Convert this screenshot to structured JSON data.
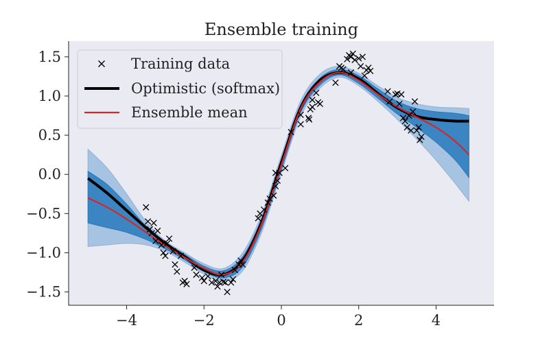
{
  "chart_data": {
    "type": "line",
    "title": "Ensemble training",
    "xlabel": "",
    "ylabel": "",
    "xlim": [
      -5.5,
      5.5
    ],
    "ylim": [
      -1.67,
      1.7
    ],
    "xticks": [
      -4,
      -2,
      0,
      2,
      4
    ],
    "yticks": [
      -1.5,
      -1.0,
      -0.5,
      0.0,
      0.5,
      1.0,
      1.5
    ],
    "xtick_labels": [
      "−4",
      "−2",
      "0",
      "2",
      "4"
    ],
    "ytick_labels": [
      "−1.5",
      "−1.0",
      "−0.5",
      "0.0",
      "0.5",
      "1.0",
      "1.5"
    ],
    "grid": false,
    "legend_position": "upper-left",
    "legend": [
      {
        "label": "Training data",
        "marker": "x",
        "color": "#000000"
      },
      {
        "label": "Optimistic (softmax)",
        "marker": "line",
        "color": "#000000"
      },
      {
        "label": "Ensemble mean",
        "marker": "line",
        "color": "#d62728"
      }
    ],
    "colors": {
      "background": "#eaeaf2",
      "band_outer": "#a7c3e2",
      "band_inner": "#3a85c2",
      "optimistic": "#000000",
      "mean": "#d62728",
      "points": "#000000"
    },
    "x": [
      -5.0,
      -4.5,
      -4.0,
      -3.5,
      -3.0,
      -2.5,
      -2.0,
      -1.5,
      -1.0,
      -0.5,
      0.0,
      0.5,
      1.0,
      1.5,
      2.0,
      2.5,
      3.0,
      3.5,
      4.0,
      4.5,
      4.85
    ],
    "series": [
      {
        "name": "Optimistic (softmax)",
        "values": [
          -0.05,
          -0.24,
          -0.46,
          -0.68,
          -0.88,
          -1.05,
          -1.22,
          -1.28,
          -1.1,
          -0.6,
          0.15,
          0.85,
          1.2,
          1.3,
          1.22,
          1.03,
          0.85,
          0.74,
          0.7,
          0.68,
          0.68
        ]
      },
      {
        "name": "Ensemble mean",
        "values": [
          -0.3,
          -0.42,
          -0.57,
          -0.74,
          -0.91,
          -1.06,
          -1.2,
          -1.28,
          -1.12,
          -0.62,
          0.12,
          0.84,
          1.18,
          1.3,
          1.2,
          1.02,
          0.86,
          0.73,
          0.6,
          0.42,
          0.25
        ]
      }
    ],
    "bands": {
      "outer_upper": [
        0.32,
        0.08,
        -0.25,
        -0.6,
        -0.85,
        -1.0,
        -1.14,
        -1.2,
        -1.0,
        -0.5,
        0.24,
        0.94,
        1.28,
        1.38,
        1.29,
        1.13,
        0.98,
        0.9,
        0.86,
        0.85,
        0.84
      ],
      "outer_lower": [
        -0.92,
        -0.9,
        -0.88,
        -0.9,
        -0.98,
        -1.12,
        -1.27,
        -1.36,
        -1.23,
        -0.73,
        0.02,
        0.74,
        1.1,
        1.24,
        1.13,
        0.93,
        0.7,
        0.45,
        0.18,
        -0.12,
        -0.34
      ],
      "inner_upper": [
        0.04,
        -0.13,
        -0.38,
        -0.66,
        -0.87,
        -1.02,
        -1.17,
        -1.23,
        -1.05,
        -0.55,
        0.19,
        0.89,
        1.23,
        1.34,
        1.26,
        1.09,
        0.93,
        0.84,
        0.8,
        0.78,
        0.75
      ],
      "inner_lower": [
        -0.62,
        -0.68,
        -0.74,
        -0.83,
        -0.95,
        -1.09,
        -1.24,
        -1.32,
        -1.18,
        -0.68,
        0.06,
        0.79,
        1.14,
        1.27,
        1.16,
        0.97,
        0.77,
        0.6,
        0.41,
        0.18,
        -0.04
      ]
    },
    "points": [
      [
        -3.5,
        -0.42
      ],
      [
        -3.45,
        -0.6
      ],
      [
        -3.4,
        -0.7
      ],
      [
        -3.35,
        -0.75
      ],
      [
        -3.3,
        -0.62
      ],
      [
        -3.25,
        -0.85
      ],
      [
        -3.2,
        -0.72
      ],
      [
        -3.1,
        -0.9
      ],
      [
        -3.05,
        -1.0
      ],
      [
        -3.0,
        -1.04
      ],
      [
        -2.95,
        -0.88
      ],
      [
        -2.9,
        -0.82
      ],
      [
        -2.8,
        -0.98
      ],
      [
        -2.75,
        -1.15
      ],
      [
        -2.7,
        -1.24
      ],
      [
        -2.6,
        -1.04
      ],
      [
        -2.55,
        -1.38
      ],
      [
        -2.5,
        -1.36
      ],
      [
        -2.45,
        -1.4
      ],
      [
        -2.25,
        -1.19
      ],
      [
        -2.2,
        -1.28
      ],
      [
        -2.05,
        -1.32
      ],
      [
        -2.0,
        -1.36
      ],
      [
        -1.9,
        -1.3
      ],
      [
        -1.8,
        -1.38
      ],
      [
        -1.7,
        -1.36
      ],
      [
        -1.65,
        -1.43
      ],
      [
        -1.6,
        -1.38
      ],
      [
        -1.55,
        -1.28
      ],
      [
        -1.5,
        -1.37
      ],
      [
        -1.45,
        -1.38
      ],
      [
        -1.4,
        -1.5
      ],
      [
        -1.3,
        -1.38
      ],
      [
        -1.25,
        -1.34
      ],
      [
        -1.2,
        -1.22
      ],
      [
        -1.1,
        -1.15
      ],
      [
        -1.05,
        -1.1
      ],
      [
        -1.0,
        -1.15
      ],
      [
        -0.6,
        -0.56
      ],
      [
        -0.55,
        -0.5
      ],
      [
        -0.45,
        -0.45
      ],
      [
        -0.35,
        -0.36
      ],
      [
        -0.3,
        -0.31
      ],
      [
        -0.2,
        -0.27
      ],
      [
        -0.15,
        -0.15
      ],
      [
        -0.1,
        -0.08
      ],
      [
        -0.15,
        0.02
      ],
      [
        -0.05,
        0.02
      ],
      [
        0.1,
        0.08
      ],
      [
        0.25,
        0.54
      ],
      [
        0.5,
        0.64
      ],
      [
        0.5,
        0.76
      ],
      [
        0.7,
        0.72
      ],
      [
        0.72,
        0.7
      ],
      [
        0.75,
        0.83
      ],
      [
        0.8,
        0.86
      ],
      [
        0.8,
        0.95
      ],
      [
        0.9,
        1.04
      ],
      [
        0.95,
        0.92
      ],
      [
        1.0,
        0.9
      ],
      [
        1.4,
        1.17
      ],
      [
        1.5,
        1.38
      ],
      [
        1.55,
        1.36
      ],
      [
        1.6,
        1.34
      ],
      [
        1.7,
        1.47
      ],
      [
        1.75,
        1.52
      ],
      [
        1.8,
        1.3
      ],
      [
        1.8,
        1.5
      ],
      [
        1.85,
        1.54
      ],
      [
        1.9,
        1.46
      ],
      [
        2.0,
        1.48
      ],
      [
        2.05,
        1.38
      ],
      [
        2.1,
        1.5
      ],
      [
        2.15,
        1.26
      ],
      [
        2.2,
        1.33
      ],
      [
        2.25,
        1.36
      ],
      [
        2.3,
        1.32
      ],
      [
        2.75,
        1.06
      ],
      [
        2.8,
        0.93
      ],
      [
        2.95,
        1.02
      ],
      [
        3.0,
        1.03
      ],
      [
        3.05,
        0.9
      ],
      [
        3.1,
        1.02
      ],
      [
        3.15,
        0.72
      ],
      [
        3.2,
        0.68
      ],
      [
        3.25,
        0.6
      ],
      [
        3.3,
        0.75
      ],
      [
        3.35,
        0.56
      ],
      [
        3.4,
        0.8
      ],
      [
        3.45,
        0.93
      ],
      [
        3.5,
        0.56
      ],
      [
        3.55,
        0.6
      ],
      [
        3.58,
        0.44
      ],
      [
        3.62,
        0.48
      ]
    ]
  }
}
